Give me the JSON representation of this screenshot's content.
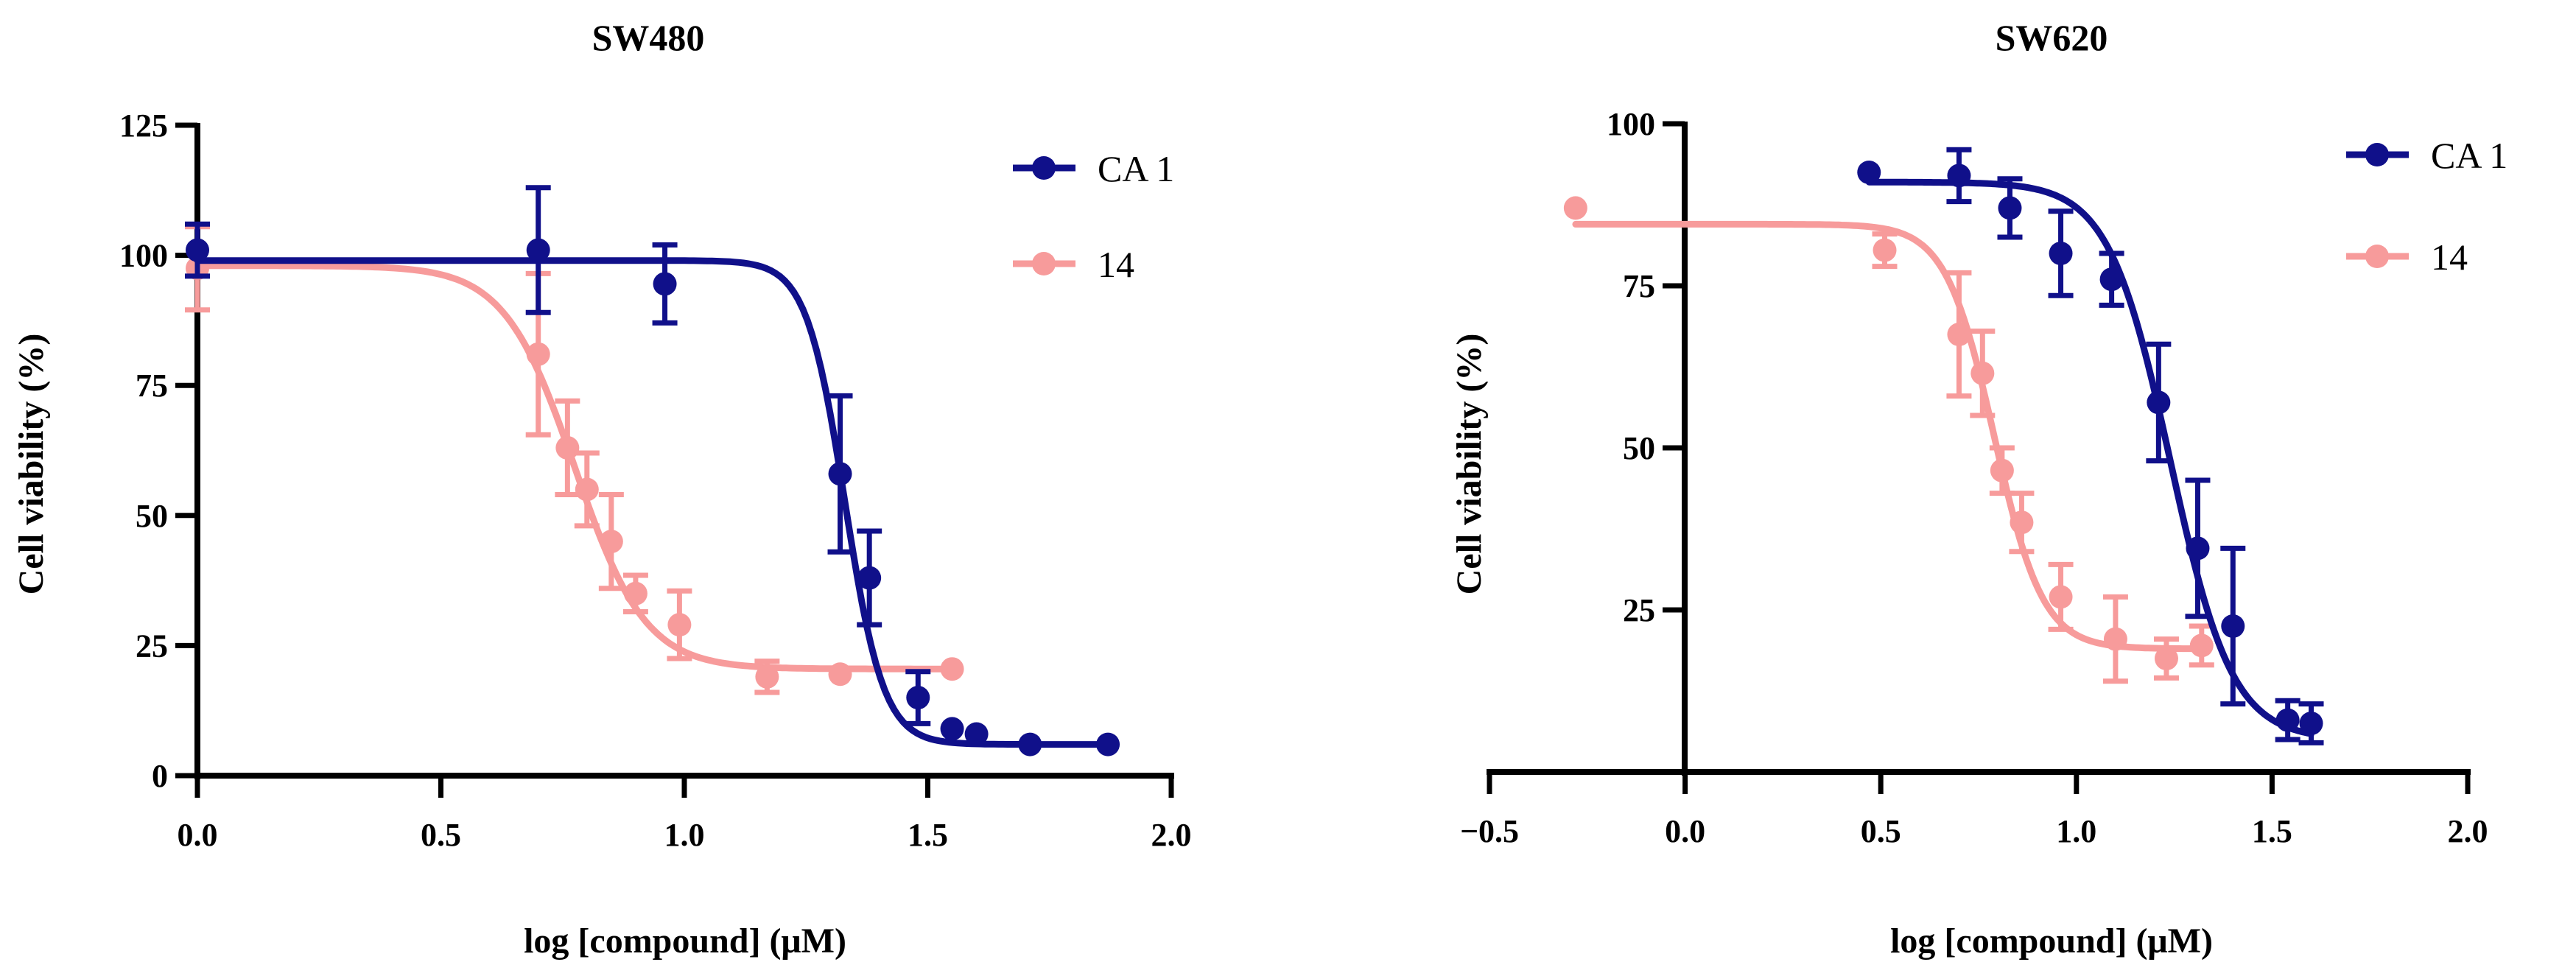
{
  "colors": {
    "CA 1": "#10108a",
    "14": "#f79b9b",
    "axis": "#000000"
  },
  "chart_data": [
    {
      "type": "scatter",
      "title": "SW480",
      "xlabel": "log [compound] (μM)",
      "ylabel": "Cell viability (%)",
      "xlim": [
        0,
        2.0
      ],
      "ylim": [
        0,
        125
      ],
      "xticks": [
        0,
        0.5,
        1.0,
        1.5,
        2.0
      ],
      "xtick_labels": [
        "0.0",
        "0.5",
        "1.0",
        "1.5",
        "2.0"
      ],
      "yticks": [
        0,
        25,
        50,
        75,
        100,
        125
      ],
      "ytick_labels": [
        "0",
        "25",
        "50",
        "75",
        "100",
        "125"
      ],
      "legend": "top-right",
      "series": [
        {
          "name": "CA 1",
          "x": [
            0.0,
            0.7,
            0.96,
            1.32,
            1.38,
            1.48,
            1.55,
            1.6,
            1.71,
            1.87
          ],
          "y": [
            101,
            101,
            94.5,
            58,
            38,
            15,
            9,
            8,
            6,
            6
          ],
          "err": [
            5,
            12,
            7.5,
            15,
            9,
            5,
            0,
            0,
            0,
            0
          ],
          "fit": {
            "bottom": 6,
            "top": 99,
            "logIC50": 1.33,
            "hill": 11
          }
        },
        {
          "name": "14",
          "x": [
            0.0,
            0.7,
            0.76,
            0.8,
            0.85,
            0.9,
            0.99,
            1.17,
            1.32,
            1.55
          ],
          "y": [
            97.5,
            81,
            63,
            55,
            45,
            35,
            29,
            19,
            19.5,
            20.5
          ],
          "err": [
            8,
            15.5,
            9,
            7,
            9,
            3.5,
            6.5,
            3,
            0,
            0
          ],
          "fit": {
            "bottom": 20.5,
            "top": 98,
            "logIC50": 0.775,
            "hill": 6
          }
        }
      ]
    },
    {
      "type": "scatter",
      "title": "SW620",
      "xlabel": "log [compound] (μM)",
      "ylabel": "Cell viability (%)",
      "xlim": [
        -0.5,
        2.0
      ],
      "ylim": [
        0,
        100
      ],
      "xticks": [
        -0.5,
        0,
        0.5,
        1.0,
        1.5,
        2.0
      ],
      "xtick_labels": [
        "−0.5",
        "0.0",
        "0.5",
        "1.0",
        "1.5",
        "2.0"
      ],
      "yticks": [
        25,
        50,
        75,
        100
      ],
      "ytick_labels": [
        "25",
        "50",
        "75",
        "100"
      ],
      "legend": "top-right",
      "series": [
        {
          "name": "CA 1",
          "x": [
            0.47,
            0.7,
            0.83,
            0.96,
            1.09,
            1.21,
            1.31,
            1.4,
            1.54,
            1.6
          ],
          "y": [
            92.5,
            92,
            87,
            80,
            76,
            57,
            34.5,
            22.5,
            8,
            7.5
          ],
          "err": [
            0,
            4,
            4.5,
            6.5,
            4,
            9,
            10.5,
            12,
            3,
            3
          ],
          "fit": {
            "bottom": 5,
            "top": 91,
            "logIC50": 1.24,
            "hill": 5.5
          }
        },
        {
          "name": "14",
          "x": [
            -0.28,
            0.51,
            0.7,
            0.76,
            0.81,
            0.86,
            0.96,
            1.1,
            1.23,
            1.32
          ],
          "y": [
            87,
            80.5,
            67.5,
            61.5,
            46.5,
            38.5,
            27,
            20.5,
            17.5,
            19.5
          ],
          "err": [
            0,
            2.5,
            9.5,
            6.5,
            3.5,
            4.5,
            5,
            6.5,
            3,
            3
          ],
          "fit": {
            "bottom": 19,
            "top": 84.5,
            "logIC50": 0.79,
            "hill": 7
          }
        }
      ]
    }
  ]
}
